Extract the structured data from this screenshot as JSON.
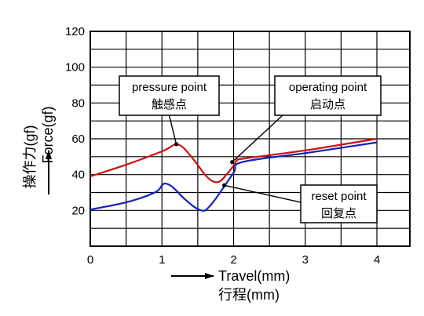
{
  "chart_data": {
    "type": "line",
    "xlabel": "Travel(mm)",
    "xlabel_cn": "行程(mm)",
    "ylabel": "Force(gf)",
    "ylabel_cn": "操作力(gf)",
    "xlim": [
      0,
      4
    ],
    "ylim": [
      0,
      120
    ],
    "x_ticks": [
      "0",
      "1",
      "2",
      "3",
      "4"
    ],
    "y_ticks": [
      "20",
      "40",
      "60",
      "80",
      "100",
      "120"
    ],
    "x_minor_step": 0.5,
    "y_minor_step": 10,
    "grid": true,
    "series": [
      {
        "color": "#cc1111",
        "points": [
          [
            0,
            39
          ],
          [
            0.5,
            45.5
          ],
          [
            1.0,
            53
          ],
          [
            1.12,
            55.5
          ],
          [
            1.2,
            57
          ],
          [
            1.3,
            55
          ],
          [
            1.45,
            48
          ],
          [
            1.6,
            40
          ],
          [
            1.7,
            36.5
          ],
          [
            1.8,
            36
          ],
          [
            1.9,
            40
          ],
          [
            2.0,
            45
          ],
          [
            2.05,
            48
          ],
          [
            2.15,
            49
          ],
          [
            3.0,
            53.5
          ],
          [
            4.0,
            60
          ]
        ]
      },
      {
        "color": "#1122bb",
        "points": [
          [
            0,
            20.5
          ],
          [
            0.5,
            24.5
          ],
          [
            0.9,
            30
          ],
          [
            1.0,
            34
          ],
          [
            1.05,
            35
          ],
          [
            1.15,
            33
          ],
          [
            1.3,
            27
          ],
          [
            1.45,
            22
          ],
          [
            1.55,
            20
          ],
          [
            1.62,
            20.5
          ],
          [
            1.75,
            26.5
          ],
          [
            2.0,
            41
          ],
          [
            2.12,
            47
          ],
          [
            3.0,
            52
          ],
          [
            4.0,
            58
          ]
        ]
      }
    ],
    "annotations": [
      {
        "id": "pressure",
        "text": "pressure point",
        "text_cn": "触感点",
        "x": 1.2,
        "y": 57
      },
      {
        "id": "operating",
        "text": "operating point",
        "text_cn": "启动点",
        "x": 1.98,
        "y": 47
      },
      {
        "id": "reset",
        "text": "reset point",
        "text_cn": "回复点",
        "x": 1.87,
        "y": 34
      }
    ]
  }
}
